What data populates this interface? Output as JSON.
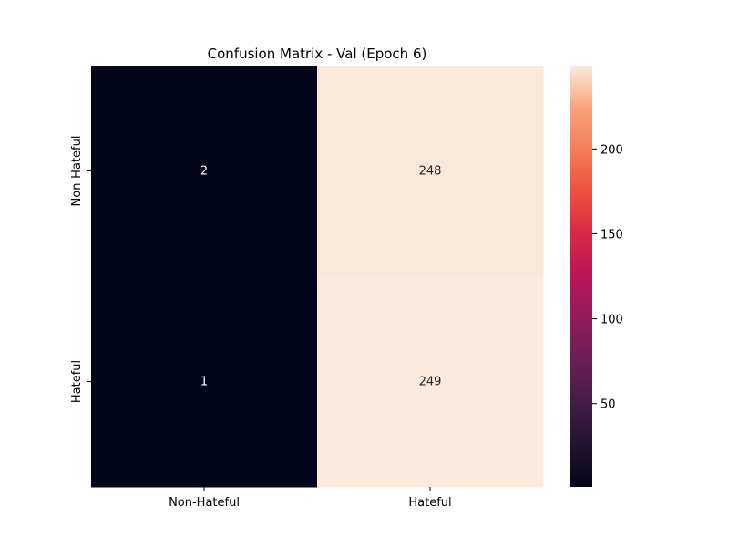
{
  "chart_data": {
    "type": "heatmap",
    "title": "Confusion Matrix - Val (Epoch 6)",
    "xlabel": "",
    "ylabel": "",
    "x_categories": [
      "Non-Hateful",
      "Hateful"
    ],
    "y_categories": [
      "Non-Hateful",
      "Hateful"
    ],
    "values": [
      [
        2,
        248
      ],
      [
        1,
        249
      ]
    ],
    "colorbar": {
      "colormap": "rocket",
      "vmin": 1,
      "vmax": 249,
      "ticks": [
        50,
        100,
        150,
        200
      ]
    },
    "annotation_colors": {
      "on_dark": "#ffffff",
      "on_light": "#262626"
    }
  }
}
